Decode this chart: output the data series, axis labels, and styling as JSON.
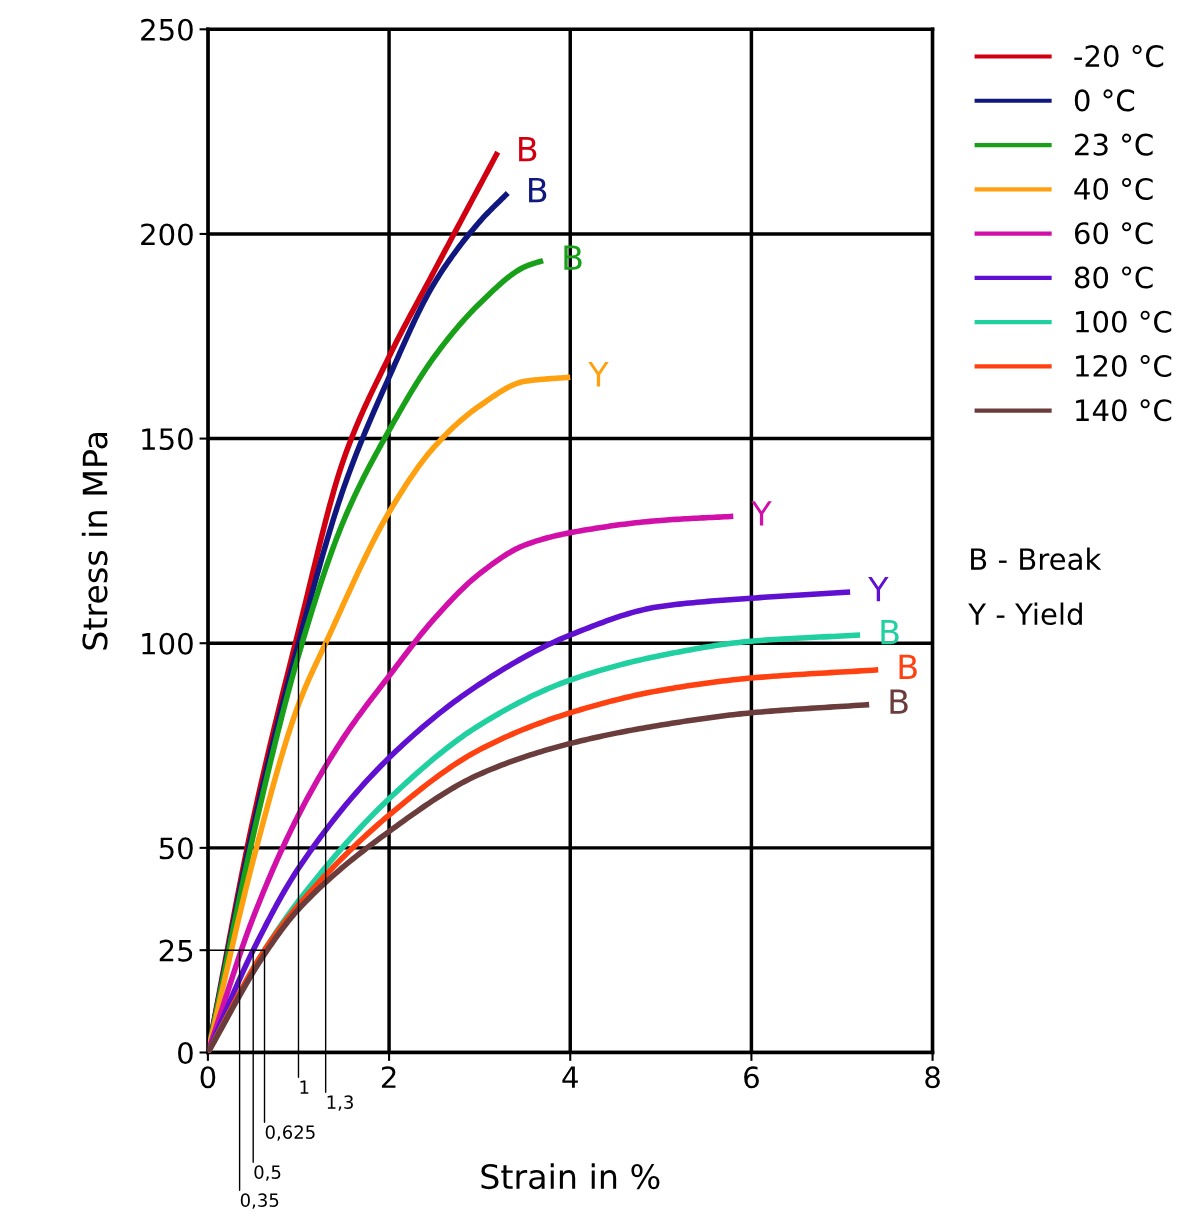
{
  "chart_data": {
    "type": "line",
    "xlabel": "Strain in %",
    "ylabel": "Stress in MPa",
    "xlim": [
      0,
      8
    ],
    "ylim": [
      0,
      250
    ],
    "xticks": [
      0,
      2,
      4,
      6,
      8
    ],
    "yticks": [
      0,
      {
        "value": 25,
        "label": "25"
      },
      50,
      100,
      150,
      200,
      250
    ],
    "grid": true,
    "legend": "right",
    "marker": "none",
    "line_style": "solid",
    "series": [
      {
        "name": "-20 °C",
        "color": "#d00010",
        "x": [
          0,
          0.5,
          1,
          1.5,
          2,
          2.5,
          3.2
        ],
        "values": [
          0,
          57,
          103,
          145,
          170,
          191,
          220
        ]
      },
      {
        "name": "0 °C",
        "color": "#101880",
        "x": [
          0,
          0.5,
          1,
          1.5,
          2,
          2.5,
          3,
          3.31
        ],
        "values": [
          0,
          55,
          100,
          138,
          165,
          188,
          203,
          210
        ]
      },
      {
        "name": "23 °C",
        "color": "#18a018",
        "x": [
          0,
          0.5,
          1,
          1.5,
          2,
          2.5,
          3,
          3.5,
          3.7
        ],
        "values": [
          0,
          53,
          97,
          130,
          152,
          170,
          183,
          192,
          193.5
        ]
      },
      {
        "name": "40 °C",
        "color": "#ffa010",
        "x": [
          0,
          0.5,
          1,
          1.3,
          2,
          2.5,
          3,
          3.5,
          4
        ],
        "values": [
          0,
          47,
          85,
          100,
          132,
          148,
          158,
          164,
          165
        ]
      },
      {
        "name": "60 °C",
        "color": "#d010a8",
        "x": [
          0,
          0.5,
          1,
          1.5,
          2,
          2.5,
          3,
          3.5,
          4,
          5,
          5.8
        ],
        "values": [
          0,
          33,
          58,
          77,
          92,
          106,
          117,
          124,
          127,
          130,
          131
        ]
      },
      {
        "name": "80 °C",
        "color": "#6010d0",
        "x": [
          0,
          0.5,
          1,
          2,
          3,
          4,
          5,
          6,
          7.09
        ],
        "values": [
          0,
          25,
          45,
          72,
          90,
          102,
          109,
          111,
          112.5
        ]
      },
      {
        "name": "100 °C",
        "color": "#20d0a0",
        "x": [
          0,
          0.625,
          1,
          2,
          3,
          4,
          5,
          6,
          7.2
        ],
        "values": [
          0,
          25,
          37,
          62,
          80,
          91,
          97,
          100.5,
          102
        ]
      },
      {
        "name": "120 °C",
        "color": "#ff4010",
        "x": [
          0,
          0.625,
          1,
          2,
          3,
          4,
          5,
          6,
          7.4
        ],
        "values": [
          0,
          25,
          36,
          58,
          74,
          83,
          88.5,
          91.5,
          93.5
        ]
      },
      {
        "name": "140 °C",
        "color": "#6a3c3c",
        "x": [
          0,
          0.625,
          1,
          2,
          3,
          4,
          5,
          6,
          7.3
        ],
        "values": [
          0,
          24,
          35,
          54,
          68,
          75.5,
          80,
          83,
          85
        ]
      },
      {
        "type": "line",
        "color": "#000000",
        "x": [
          0,
          0.625
        ],
        "values": [
          25,
          25
        ]
      }
    ],
    "annotations": [
      {
        "text": "B",
        "x": 3.2,
        "y": 220
      },
      {
        "text": "B",
        "x": 3.31,
        "y": 210
      },
      {
        "text": "B",
        "x": 3.7,
        "y": 193.5
      },
      {
        "text": "Y",
        "x": 4.0,
        "y": 165
      },
      {
        "text": "Y",
        "x": 5.8,
        "y": 131
      },
      {
        "text": "Y",
        "x": 7.09,
        "y": 112.5
      },
      {
        "text": "B",
        "x": 7.2,
        "y": 102
      },
      {
        "text": "B",
        "x": 7.4,
        "y": 93.5
      },
      {
        "text": "B",
        "x": 7.3,
        "y": 85
      },
      {
        "text": "0,35",
        "x": 0.35,
        "y": 25
      },
      {
        "text": "0,5",
        "x": 0.5,
        "y": 25
      },
      {
        "text": "0,625",
        "x": 0.625,
        "y": 25
      },
      {
        "text": "1",
        "x": 1,
        "y": 100
      },
      {
        "text": "1,3",
        "x": 1.3,
        "y": 100
      },
      "B - Break",
      "Y - Yield"
    ]
  }
}
